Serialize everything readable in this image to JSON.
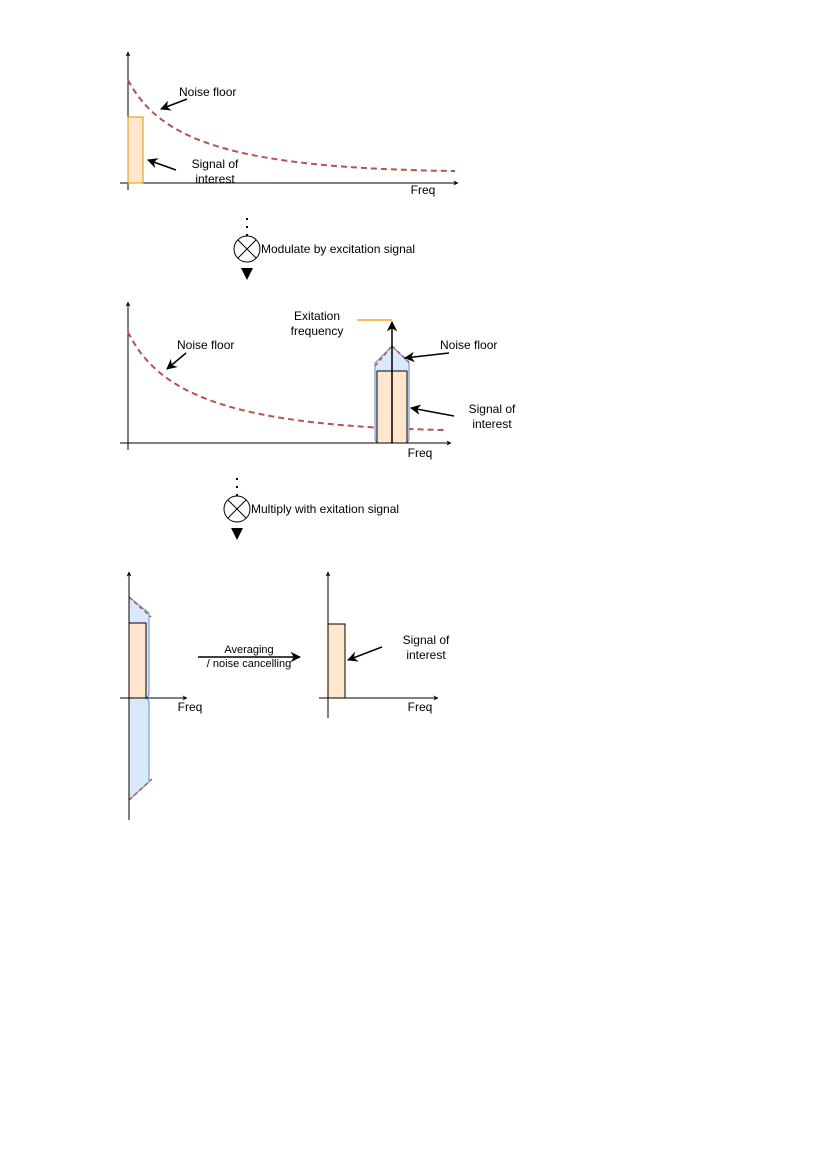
{
  "panel1": {
    "noise_label": "Noise floor",
    "signal_label_1": "Signal of",
    "signal_label_2": "interest",
    "axis_label": "Freq"
  },
  "step1": {
    "label": "Modulate by excitation signal"
  },
  "panel2": {
    "excitation_label_1": "Exitation",
    "excitation_label_2": "frequency",
    "noise_label_left": "Noise floor",
    "noise_label_right": "Noise floor",
    "signal_label_1": "Signal of",
    "signal_label_2": "interest",
    "axis_label": "Freq"
  },
  "step2": {
    "label": "Multiply with  exitation signal"
  },
  "panel3": {
    "axis_label_left": "Freq",
    "averaging_label_1": "Averaging",
    "averaging_label_2": "/ noise cancelling",
    "axis_label_right": "Freq",
    "signal_label_1": "Signal of",
    "signal_label_2": "interest"
  },
  "colors": {
    "signal_fill": "#ffe6cc",
    "signal_stroke": "#d79b00",
    "noise_dash": "#b85450",
    "modulated_fill": "#dae8fc",
    "modulated_stroke": "#6c8ebf",
    "excitation_line": "#f5a623"
  }
}
